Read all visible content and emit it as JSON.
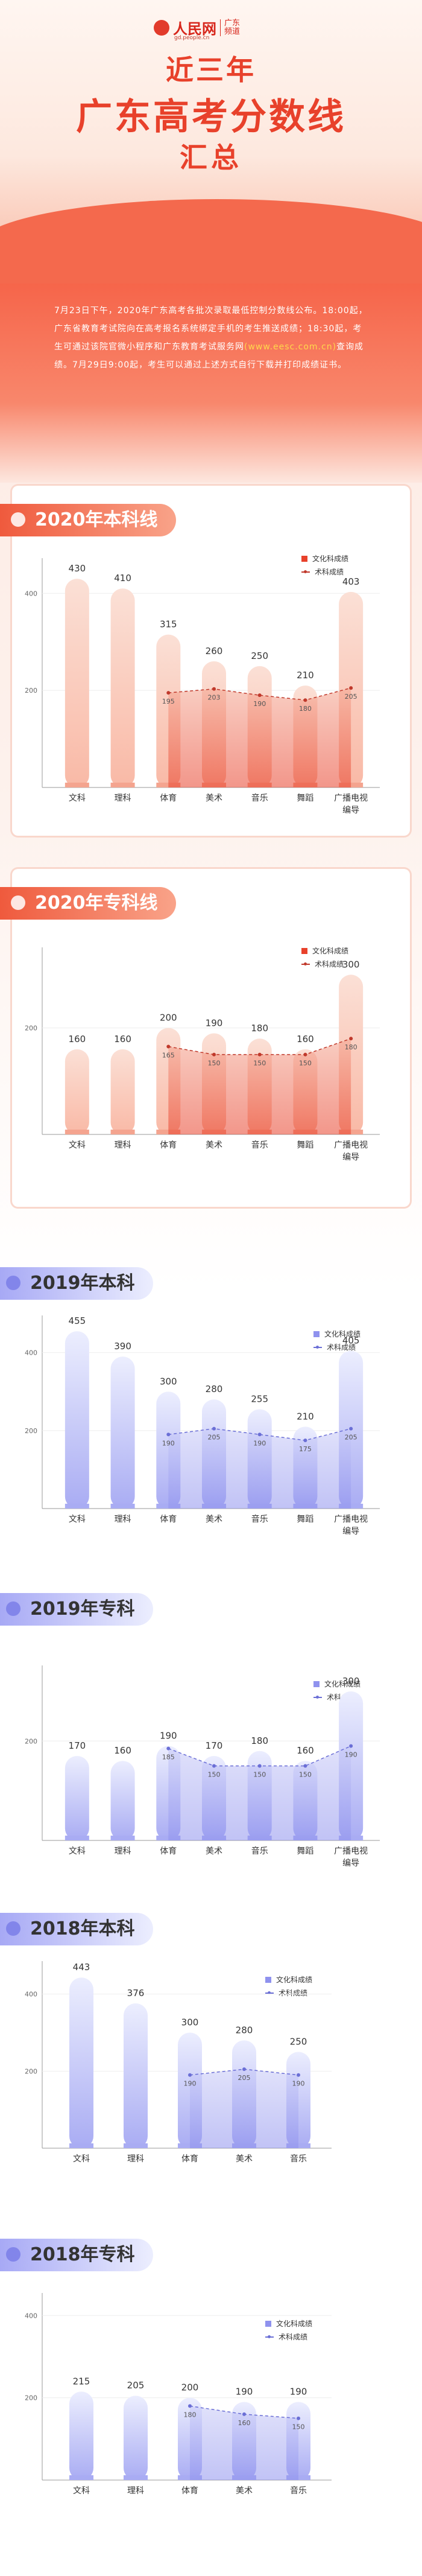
{
  "header": {
    "brand": "人民网",
    "region": "广东\n频道",
    "domain": "gd.people.cn",
    "title_line1": "近三年",
    "title_line2": "广东高考分数线",
    "title_line3": "汇总"
  },
  "intro": {
    "text_before": "7月23日下午，2020年广东高考各批次录取最低控制分数线公布。18:00起，广东省教育考试院向在高考报名系统绑定手机的考生推送成绩；18:30起，考生可通过该院官微小程序和广东教育考试服务网",
    "url": "(www.eesc.com.cn)",
    "text_after": "查询成绩。7月29日9:00起，考生可以通过上述方式自行下载并打印成绩证书。"
  },
  "colors": {
    "red_bar": "#e8412b",
    "red_line": "#c0392b",
    "blue_bar": "#8f92ee",
    "blue_line": "#6b6fd6"
  },
  "legend": {
    "culture": "文化科成绩",
    "art": "术科成绩"
  },
  "chart_data": [
    {
      "type": "bar",
      "title": "2020年本科线",
      "theme": "red",
      "categories": [
        "文科",
        "理科",
        "体育",
        "美术",
        "音乐",
        "舞蹈",
        "广播电视编导"
      ],
      "y_ticks": [
        200,
        400
      ],
      "ylim": [
        0,
        460
      ],
      "series": [
        {
          "name": "文化科成绩",
          "values": [
            430,
            410,
            315,
            260,
            250,
            210,
            403
          ]
        },
        {
          "name": "术科成绩",
          "values": [
            null,
            null,
            195,
            203,
            190,
            180,
            205
          ]
        }
      ]
    },
    {
      "type": "bar",
      "title": "2020年专科线",
      "theme": "red",
      "categories": [
        "文科",
        "理科",
        "体育",
        "美术",
        "音乐",
        "舞蹈",
        "广播电视编导"
      ],
      "y_ticks": [
        200
      ],
      "ylim": [
        0,
        340
      ],
      "series": [
        {
          "name": "文化科成绩",
          "values": [
            160,
            160,
            200,
            190,
            180,
            160,
            300
          ]
        },
        {
          "name": "术科成绩",
          "values": [
            null,
            null,
            165,
            150,
            150,
            150,
            180
          ]
        }
      ]
    },
    {
      "type": "bar",
      "title": "2019年本科",
      "theme": "blue",
      "categories": [
        "文科",
        "理科",
        "体育",
        "美术",
        "音乐",
        "舞蹈",
        "广播电视编导"
      ],
      "y_ticks": [
        200,
        400
      ],
      "ylim": [
        0,
        480
      ],
      "series": [
        {
          "name": "文化科成绩",
          "values": [
            455,
            390,
            300,
            280,
            255,
            210,
            405
          ]
        },
        {
          "name": "术科成绩",
          "values": [
            null,
            null,
            190,
            205,
            190,
            175,
            205
          ]
        }
      ]
    },
    {
      "type": "bar",
      "title": "2019年专科",
      "theme": "blue",
      "categories": [
        "文科",
        "理科",
        "体育",
        "美术",
        "音乐",
        "舞蹈",
        "广播电视编导"
      ],
      "y_ticks": [
        200
      ],
      "ylim": [
        0,
        340
      ],
      "series": [
        {
          "name": "文化科成绩",
          "values": [
            170,
            160,
            190,
            170,
            180,
            160,
            300
          ]
        },
        {
          "name": "术科成绩",
          "values": [
            null,
            null,
            185,
            150,
            150,
            150,
            190
          ]
        }
      ]
    },
    {
      "type": "bar",
      "title": "2018年本科",
      "theme": "blue",
      "categories": [
        "文科",
        "理科",
        "体育",
        "美术",
        "音乐"
      ],
      "y_ticks": [
        200,
        400
      ],
      "ylim": [
        0,
        470
      ],
      "series": [
        {
          "name": "文化科成绩",
          "values": [
            443,
            376,
            300,
            280,
            250
          ]
        },
        {
          "name": "术科成绩",
          "values": [
            null,
            null,
            190,
            205,
            190
          ]
        }
      ]
    },
    {
      "type": "bar",
      "title": "2018年专科",
      "theme": "blue",
      "categories": [
        "文科",
        "理科",
        "体育",
        "美术",
        "音乐"
      ],
      "y_ticks": [
        200,
        400
      ],
      "ylim": [
        0,
        440
      ],
      "series": [
        {
          "name": "文化科成绩",
          "values": [
            215,
            205,
            200,
            190,
            190
          ]
        },
        {
          "name": "术科成绩",
          "values": [
            null,
            null,
            180,
            160,
            150
          ]
        }
      ]
    }
  ]
}
